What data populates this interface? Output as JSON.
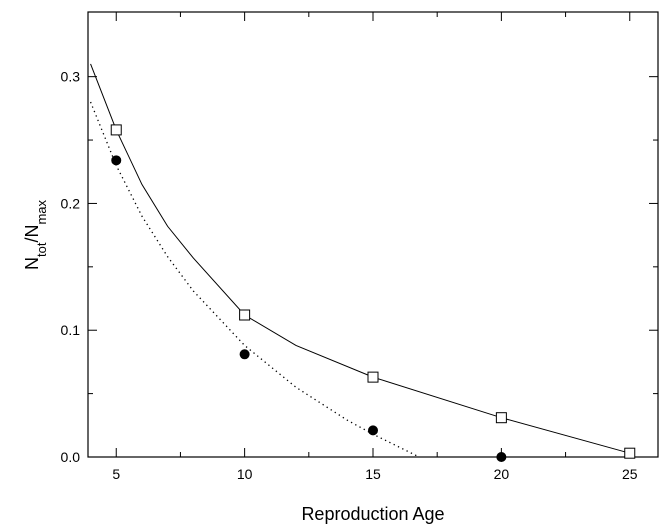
{
  "chart_data": {
    "type": "scatter",
    "xlabel": "Reproduction Age",
    "ylabel_parts": [
      {
        "text": "N"
      },
      {
        "text": "tot",
        "sub": true
      },
      {
        "text": "/N"
      },
      {
        "text": "max",
        "sub": true
      }
    ],
    "xlim": [
      3.9,
      26.1
    ],
    "ylim": [
      0,
      0.351
    ],
    "xticks": [
      5,
      10,
      15,
      20,
      25
    ],
    "xminor": [
      7.5,
      12.5,
      17.5,
      22.5
    ],
    "yticks": [
      {
        "value": 0,
        "label": "0.0"
      },
      0.1,
      0.2,
      0.3
    ],
    "yminor": [
      0.05,
      0.15,
      0.25
    ],
    "series": [
      {
        "style": "solid",
        "color": "#000000",
        "x": [
          4,
          5,
          6,
          7,
          8,
          10,
          12,
          15,
          20,
          25
        ],
        "values": [
          0.31,
          0.258,
          0.215,
          0.182,
          0.157,
          0.112,
          0.088,
          0.063,
          0.031,
          0.003
        ]
      },
      {
        "style": "dotted",
        "color": "#000000",
        "x": [
          4,
          5,
          6,
          7,
          8,
          10,
          12,
          14,
          15,
          16,
          16.8
        ],
        "values": [
          0.28,
          0.23,
          0.19,
          0.158,
          0.131,
          0.088,
          0.055,
          0.029,
          0.018,
          0.008,
          0.0
        ]
      },
      {
        "marker": "square",
        "color": "#000000",
        "x": [
          5,
          10,
          15,
          20,
          25
        ],
        "values": [
          0.258,
          0.112,
          0.063,
          0.031,
          0.003
        ]
      },
      {
        "marker": "circle",
        "color": "#000000",
        "x": [
          5,
          10,
          15,
          20
        ],
        "values": [
          0.234,
          0.081,
          0.021,
          0.0
        ]
      }
    ]
  }
}
